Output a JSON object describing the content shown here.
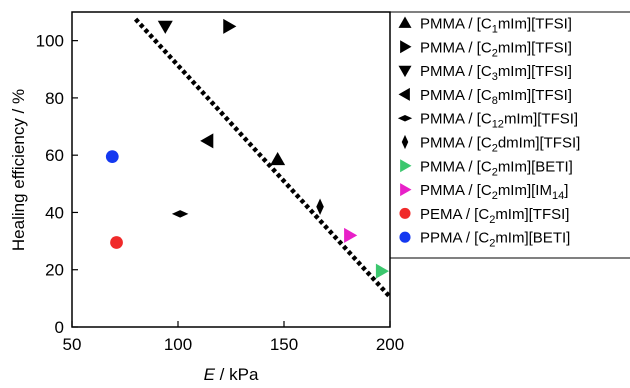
{
  "chart_data": {
    "type": "scatter",
    "xlabel": {
      "italic": "E",
      "rest": " / kPa"
    },
    "ylabel": "Healing efficiency / %",
    "xlim": [
      50,
      200
    ],
    "ylim": [
      0,
      110
    ],
    "xticks": [
      50,
      100,
      150,
      200
    ],
    "yticks": [
      0,
      20,
      40,
      60,
      80,
      100
    ],
    "x_tick_labels": [
      "50",
      "100",
      "150",
      "200"
    ],
    "y_tick_labels": [
      "0",
      "20",
      "40",
      "60",
      "80",
      "100"
    ],
    "grid": false,
    "legend_placement": "right, outside plot area",
    "series": [
      {
        "name": "PMMA / [C1mIm][TFSI]",
        "parts": [
          "PMMA / [C",
          "1",
          "mIm][TFSI]"
        ],
        "marker": "triangle-up",
        "color": "#000000",
        "points": [
          [
            147,
            58.5
          ]
        ]
      },
      {
        "name": "PMMA / [C2mIm][TFSI]",
        "parts": [
          "PMMA / [C",
          "2",
          "mIm][TFSI]"
        ],
        "marker": "triangle-right",
        "color": "#000000",
        "points": [
          [
            124,
            105
          ]
        ]
      },
      {
        "name": "PMMA / [C3mIm][TFSI]",
        "parts": [
          "PMMA / [C",
          "3",
          "mIm][TFSI]"
        ],
        "marker": "triangle-down",
        "color": "#000000",
        "points": [
          [
            94,
            105
          ]
        ]
      },
      {
        "name": "PMMA / [C8mIm][TFSI]",
        "parts": [
          "PMMA / [C",
          "8",
          "mIm][TFSI]"
        ],
        "marker": "triangle-left",
        "color": "#000000",
        "points": [
          [
            114,
            65
          ]
        ]
      },
      {
        "name": "PMMA / [C12mIm][TFSI]",
        "parts": [
          "PMMA / [C",
          "12",
          "mIm][TFSI]"
        ],
        "marker": "diamond-wide",
        "color": "#000000",
        "points": [
          [
            101,
            39.5
          ]
        ]
      },
      {
        "name": "PMMA / [C2dmIm][TFSI]",
        "parts": [
          "PMMA / [C",
          "2",
          "dmIm][TFSI]"
        ],
        "marker": "diamond-tall",
        "color": "#000000",
        "points": [
          [
            167,
            42
          ]
        ]
      },
      {
        "name": "PMMA / [C2mIm][BETI]",
        "parts": [
          "PMMA / [C",
          "2",
          "mIm][BETI]"
        ],
        "marker": "triangle-right",
        "color": "#3cc76e",
        "points": [
          [
            196,
            19.5
          ]
        ]
      },
      {
        "name": "PMMA / [C2mIm][IM14]",
        "parts": [
          "PMMA / [C",
          "2",
          "mIm][IM",
          "14",
          "]"
        ],
        "marker": "triangle-right",
        "color": "#e820c8",
        "points": [
          [
            181,
            32
          ]
        ]
      },
      {
        "name": "PEMA / [C2mIm][TFSI]",
        "parts": [
          "PEMA / [C",
          "2",
          "mIm][TFSI]"
        ],
        "marker": "circle",
        "color": "#f02a2a",
        "points": [
          [
            71,
            29.5
          ]
        ]
      },
      {
        "name": "PPMA / [C2mIm][BETI]",
        "parts": [
          "PPMA / [C",
          "2",
          "mIm][BETI]"
        ],
        "marker": "circle",
        "color": "#1438f0",
        "points": [
          [
            69,
            59.5
          ]
        ]
      }
    ],
    "trend_line": {
      "style": "dotted",
      "color": "#000000",
      "x": [
        80,
        200
      ],
      "y": [
        107.5,
        10.5
      ]
    }
  }
}
